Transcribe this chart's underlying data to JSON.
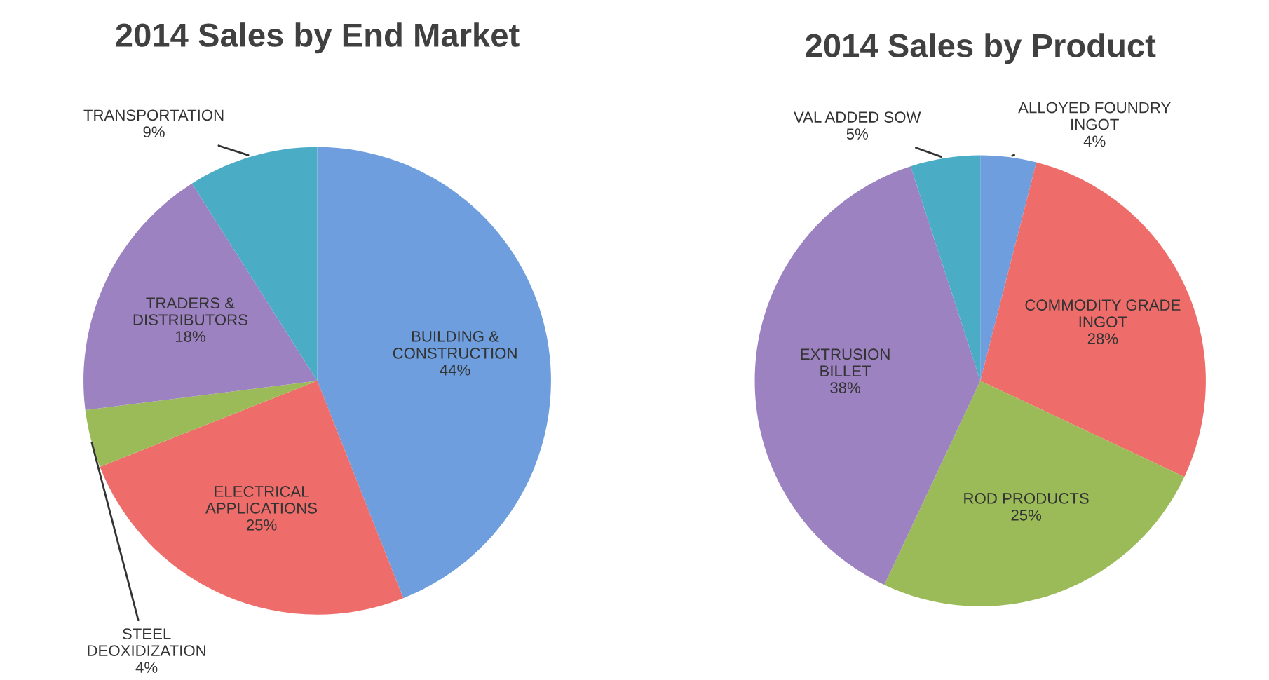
{
  "chart_data": [
    {
      "type": "pie",
      "title": "2014 Sales by End Market",
      "categories": [
        "BUILDING & CONSTRUCTION",
        "ELECTRICAL APPLICATIONS",
        "STEEL DEOXIDIZATION",
        "TRADERS & DISTRIBUTORS",
        "TRANSPORTATION"
      ],
      "values": [
        44,
        25,
        4,
        18,
        9
      ],
      "value_labels": [
        "44%",
        "25%",
        "4%",
        "18%",
        "9%"
      ],
      "colors": [
        "#6e9ede",
        "#ee6d6a",
        "#9bbb59",
        "#9d82c1",
        "#4bacc6"
      ]
    },
    {
      "type": "pie",
      "title": "2014 Sales by Product",
      "categories": [
        "ALLOYED FOUNDRY INGOT",
        "COMMODITY GRADE INGOT",
        "ROD PRODUCTS",
        "EXTRUSION BILLET",
        "VAL ADDED SOW"
      ],
      "values": [
        4,
        28,
        25,
        38,
        5
      ],
      "value_labels": [
        "4%",
        "28%",
        "25%",
        "38%",
        "5%"
      ],
      "colors": [
        "#6e9ede",
        "#ee6d6a",
        "#9bbb59",
        "#9d82c1",
        "#4bacc6"
      ]
    }
  ]
}
